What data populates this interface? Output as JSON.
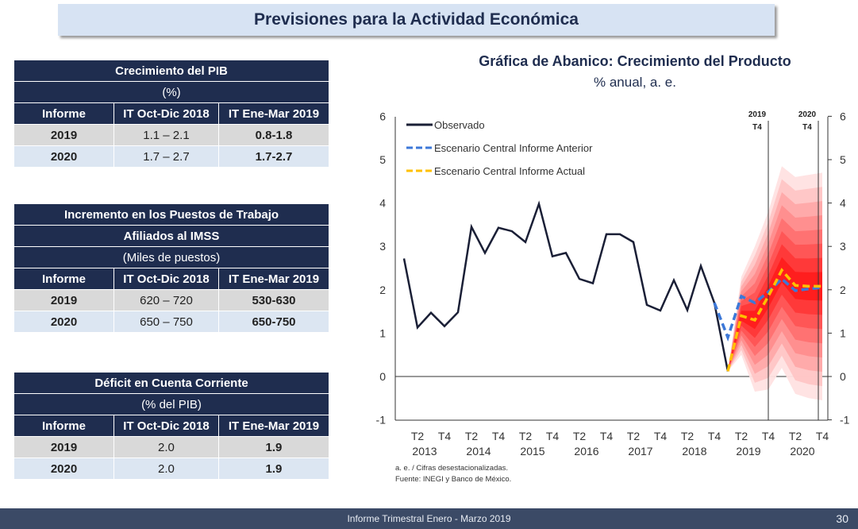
{
  "title": "Previsiones para la Actividad Económica",
  "tables": [
    {
      "title": [
        "Crecimiento del PIB",
        "(%)"
      ],
      "headers": [
        "Informe",
        "IT Oct-Dic 2018",
        "IT Ene-Mar 2019"
      ],
      "rows": [
        [
          "2019",
          "1.1 – 2.1",
          "0.8-1.8"
        ],
        [
          "2020",
          "1.7 – 2.7",
          "1.7-2.7"
        ]
      ]
    },
    {
      "title": [
        "Incremento en los Puestos de Trabajo",
        "Afiliados al IMSS",
        "(Miles de puestos)"
      ],
      "headers": [
        "Informe",
        "IT Oct-Dic 2018",
        "IT Ene-Mar 2019"
      ],
      "rows": [
        [
          "2019",
          "620 – 720",
          "530-630"
        ],
        [
          "2020",
          "650 – 750",
          "650-750"
        ]
      ]
    },
    {
      "title": [
        "Déficit en Cuenta Corriente",
        "(% del PIB)"
      ],
      "headers": [
        "Informe",
        "IT Oct-Dic 2018",
        "IT Ene-Mar 2019"
      ],
      "rows": [
        [
          "2019",
          "2.0",
          "1.9"
        ],
        [
          "2020",
          "2.0",
          "1.9"
        ]
      ]
    }
  ],
  "chart_data": {
    "type": "line",
    "title": "Gráfica de Abanico: Crecimiento del Producto",
    "subtitle": "% anual, a. e.",
    "ylim": [
      -1,
      6
    ],
    "yticks": [
      "-1",
      "0",
      "1",
      "2",
      "3",
      "4",
      "5",
      "6"
    ],
    "x_tick_labels": [
      "T2",
      "T4",
      "T2",
      "T4",
      "T2",
      "T4",
      "T2",
      "T4",
      "T2",
      "T4",
      "T2",
      "T4",
      "T2",
      "T4",
      "T2",
      "T4"
    ],
    "x_year_labels": [
      "2013",
      "2014",
      "2015",
      "2016",
      "2017",
      "2018",
      "2019",
      "2020"
    ],
    "markers": [
      {
        "label": [
          "2019",
          "T4"
        ]
      },
      {
        "label": [
          "2020",
          "T4"
        ]
      }
    ],
    "series": [
      {
        "name": "Observado",
        "color": "#1a1f36",
        "start": "2013 T1",
        "values": [
          2.72,
          1.13,
          1.47,
          1.16,
          1.48,
          3.45,
          2.85,
          3.43,
          3.35,
          3.1,
          3.98,
          2.77,
          2.85,
          2.25,
          2.15,
          3.28,
          3.28,
          3.1,
          1.65,
          1.52,
          2.22,
          1.53,
          2.55,
          1.7,
          0.12
        ]
      },
      {
        "name": "Escenario Central Informe Anterior",
        "color": "#3c78d8",
        "start": "2018 T4",
        "values": [
          1.7,
          0.9,
          1.85,
          1.7,
          1.95,
          2.25,
          1.98,
          2.02,
          2.05
        ]
      },
      {
        "name": "Escenario Central Informe Actual",
        "color": "#ffc000",
        "start": "2019 T1",
        "values": [
          0.12,
          1.4,
          1.3,
          1.85,
          2.45,
          2.1,
          2.08,
          2.08
        ]
      }
    ],
    "fan": {
      "start": "2019 T1",
      "upper": [
        0.12,
        2.3,
        3.0,
        3.8,
        4.85,
        4.6,
        4.65,
        4.7
      ],
      "lower": [
        0.12,
        0.5,
        -0.35,
        -0.3,
        0.2,
        -0.4,
        -0.5,
        -0.55
      ]
    },
    "notes": [
      "a. e. / Cifras desestacionalizadas.",
      "Fuente: INEGI y Banco de México."
    ]
  },
  "footer": {
    "text": "Informe Trimestral Enero - Marzo 2019",
    "page": "30"
  }
}
